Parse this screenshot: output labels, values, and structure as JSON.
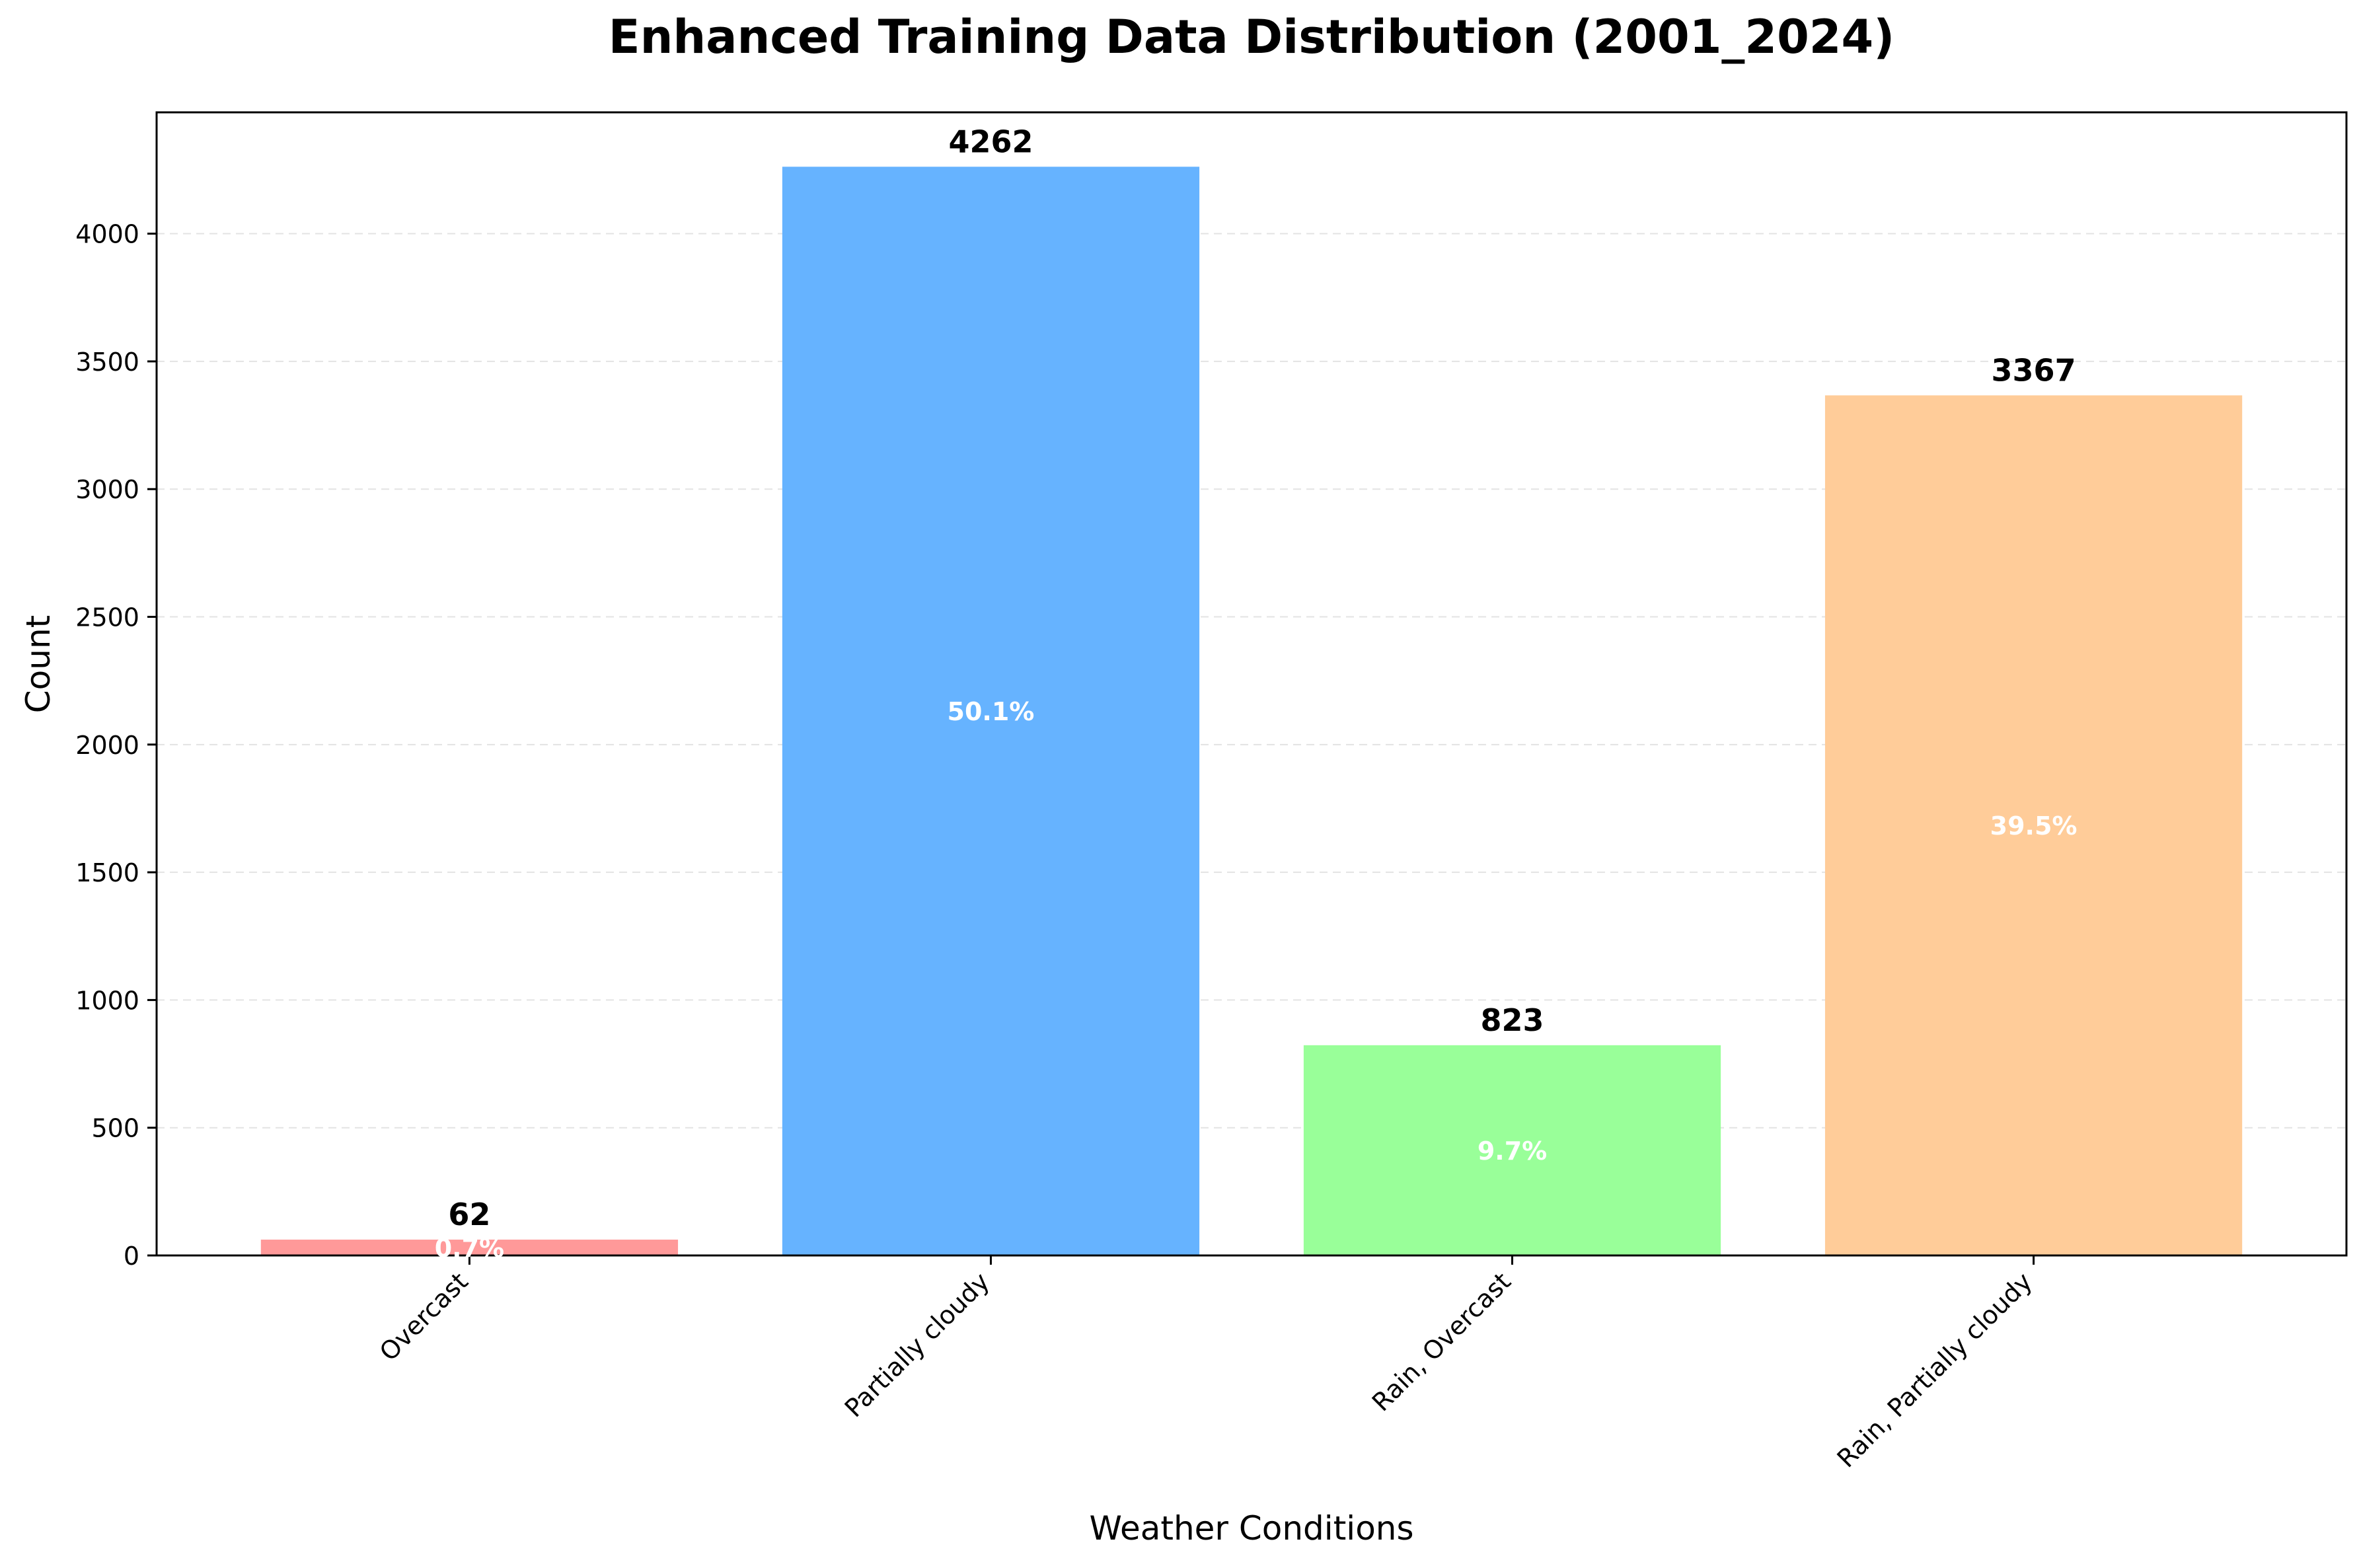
{
  "chart_data": {
    "type": "bar",
    "title": "Enhanced Training Data Distribution (2001_2024)",
    "xlabel": "Weather Conditions",
    "ylabel": "Count",
    "categories": [
      "Overcast",
      "Partially cloudy",
      "Rain, Overcast",
      "Rain, Partially cloudy"
    ],
    "values": [
      62,
      4262,
      823,
      3367
    ],
    "percent_labels": [
      "0.7%",
      "50.1%",
      "9.7%",
      "39.5%"
    ],
    "value_labels": [
      "62",
      "4262",
      "823",
      "3367"
    ],
    "colors": [
      "#ff9999",
      "#66b3ff",
      "#99ff99",
      "#ffcc99"
    ],
    "ylim": [
      0,
      4475
    ],
    "yticks": [
      0,
      500,
      1000,
      1500,
      2000,
      2500,
      3000,
      3500,
      4000
    ],
    "grid": "y-dashed",
    "legend": "none"
  }
}
